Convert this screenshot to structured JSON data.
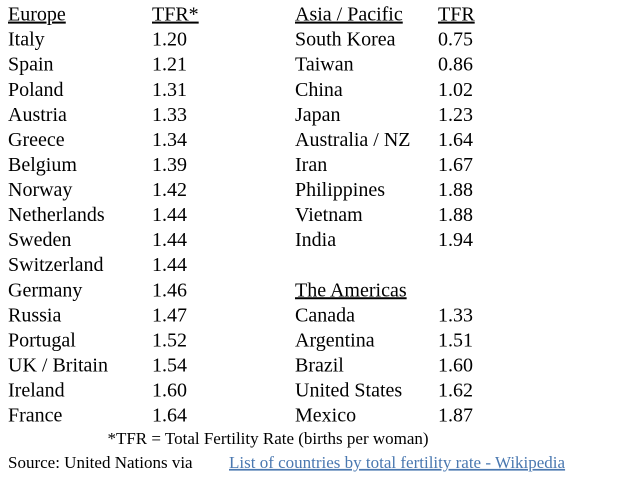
{
  "europe": {
    "header": [
      "Europe",
      "TFR*"
    ],
    "rows": [
      [
        "Italy",
        "1.20"
      ],
      [
        "Spain",
        "1.21"
      ],
      [
        "Poland",
        "1.31"
      ],
      [
        "Austria",
        "1.33"
      ],
      [
        "Greece",
        "1.34"
      ],
      [
        "Belgium",
        "1.39"
      ],
      [
        "Norway",
        "1.42"
      ],
      [
        "Netherlands",
        "1.44"
      ],
      [
        "Sweden",
        "1.44"
      ],
      [
        "Switzerland",
        "1.44"
      ],
      [
        "Germany",
        "1.46"
      ],
      [
        "Russia",
        "1.47"
      ],
      [
        "Portugal",
        "1.52"
      ],
      [
        "UK / Britain",
        "1.54"
      ],
      [
        "Ireland",
        "1.60"
      ],
      [
        "France",
        "1.64"
      ]
    ]
  },
  "asia_pacific": {
    "header": [
      "Asia / Pacific",
      "TFR"
    ],
    "rows": [
      [
        "South Korea",
        "0.75"
      ],
      [
        "Taiwan",
        "0.86"
      ],
      [
        "China",
        "1.02"
      ],
      [
        "Japan",
        "1.23"
      ],
      [
        "Australia / NZ",
        "1.64"
      ],
      [
        "Iran",
        "1.67"
      ],
      [
        "Philippines",
        "1.88"
      ],
      [
        "Vietnam",
        "1.88"
      ],
      [
        "India",
        "1.94"
      ]
    ]
  },
  "americas": {
    "header": "The Americas",
    "rows": [
      [
        "Canada",
        "1.33"
      ],
      [
        "Argentina",
        "1.51"
      ],
      [
        "Brazil",
        "1.60"
      ],
      [
        "United States",
        "1.62"
      ],
      [
        "Mexico",
        "1.87"
      ]
    ]
  },
  "footnote": "*TFR = Total Fertility Rate (births per woman)",
  "source": {
    "prefix": "Source: United Nations via",
    "link": "List of countries by total fertility rate - Wikipedia"
  }
}
